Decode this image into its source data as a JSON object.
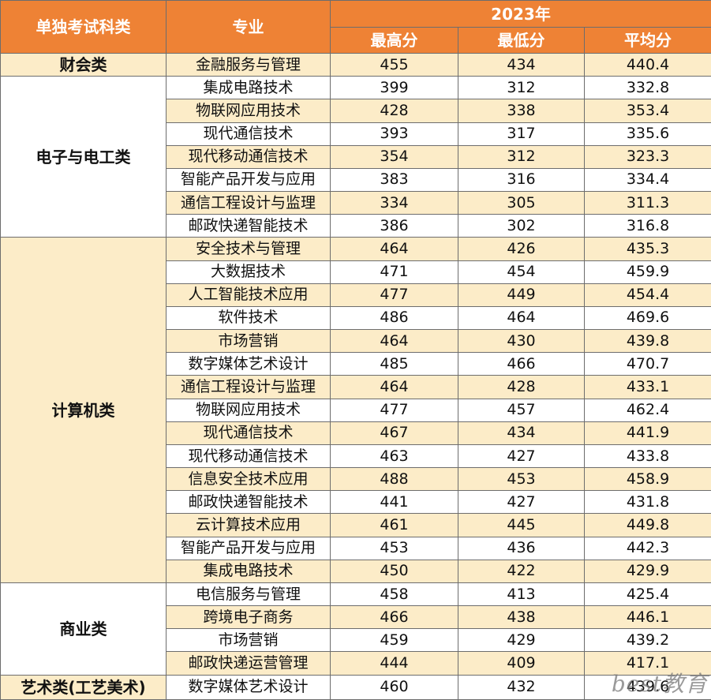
{
  "header": {
    "category": "单独考试科类",
    "major": "专业",
    "year": "2023年",
    "max": "最高分",
    "min": "最低分",
    "avg": "平均分"
  },
  "groups": [
    {
      "category": "财会类",
      "rows": [
        {
          "major": "金融服务与管理",
          "max": "455",
          "min": "434",
          "avg": "440.4"
        }
      ]
    },
    {
      "category": "电子与电工类",
      "rows": [
        {
          "major": "集成电路技术",
          "max": "399",
          "min": "312",
          "avg": "332.8"
        },
        {
          "major": "物联网应用技术",
          "max": "428",
          "min": "338",
          "avg": "353.4"
        },
        {
          "major": "现代通信技术",
          "max": "393",
          "min": "317",
          "avg": "335.6"
        },
        {
          "major": "现代移动通信技术",
          "max": "354",
          "min": "312",
          "avg": "323.3"
        },
        {
          "major": "智能产品开发与应用",
          "max": "383",
          "min": "316",
          "avg": "334.4"
        },
        {
          "major": "通信工程设计与监理",
          "max": "334",
          "min": "305",
          "avg": "311.3"
        },
        {
          "major": "邮政快递智能技术",
          "max": "386",
          "min": "302",
          "avg": "316.8"
        }
      ]
    },
    {
      "category": "计算机类",
      "rows": [
        {
          "major": "安全技术与管理",
          "max": "464",
          "min": "426",
          "avg": "435.3"
        },
        {
          "major": "大数据技术",
          "max": "471",
          "min": "454",
          "avg": "459.9"
        },
        {
          "major": "人工智能技术应用",
          "max": "477",
          "min": "449",
          "avg": "454.4"
        },
        {
          "major": "软件技术",
          "max": "486",
          "min": "464",
          "avg": "469.6"
        },
        {
          "major": "市场营销",
          "max": "464",
          "min": "430",
          "avg": "439.8"
        },
        {
          "major": "数字媒体艺术设计",
          "max": "485",
          "min": "466",
          "avg": "470.7"
        },
        {
          "major": "通信工程设计与监理",
          "max": "464",
          "min": "428",
          "avg": "433.1"
        },
        {
          "major": "物联网应用技术",
          "max": "477",
          "min": "457",
          "avg": "462.4"
        },
        {
          "major": "现代通信技术",
          "max": "467",
          "min": "434",
          "avg": "441.9"
        },
        {
          "major": "现代移动通信技术",
          "max": "463",
          "min": "427",
          "avg": "433.8"
        },
        {
          "major": "信息安全技术应用",
          "max": "488",
          "min": "453",
          "avg": "458.9"
        },
        {
          "major": "邮政快递智能技术",
          "max": "441",
          "min": "427",
          "avg": "431.8"
        },
        {
          "major": "云计算技术应用",
          "max": "461",
          "min": "445",
          "avg": "449.8"
        },
        {
          "major": "智能产品开发与应用",
          "max": "453",
          "min": "436",
          "avg": "442.3"
        },
        {
          "major": "集成电路技术",
          "max": "450",
          "min": "422",
          "avg": "429.9"
        }
      ]
    },
    {
      "category": "商业类",
      "rows": [
        {
          "major": "电信服务与管理",
          "max": "458",
          "min": "413",
          "avg": "425.4"
        },
        {
          "major": "跨境电子商务",
          "max": "466",
          "min": "438",
          "avg": "446.1"
        },
        {
          "major": "市场营销",
          "max": "459",
          "min": "429",
          "avg": "439.2"
        },
        {
          "major": "邮政快递运营管理",
          "max": "444",
          "min": "409",
          "avg": "417.1"
        }
      ]
    },
    {
      "category": "艺术类(工艺美术)",
      "rows": [
        {
          "major": "数字媒体艺术设计",
          "max": "460",
          "min": "432",
          "avg": "439.6"
        }
      ]
    }
  ],
  "colors": {
    "header_bg": "#ee8235",
    "row_shade": "#fcecc8",
    "border": "#6d6d6d"
  },
  "watermark": "best教育"
}
